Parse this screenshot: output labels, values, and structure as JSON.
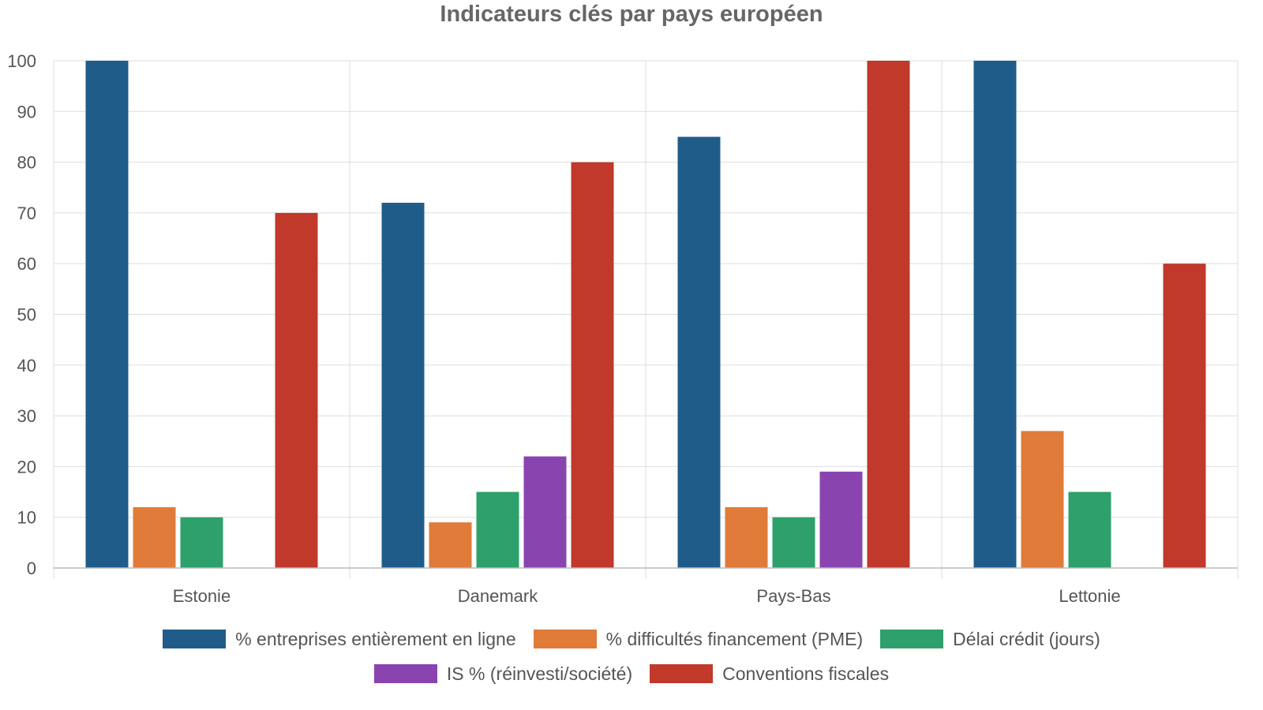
{
  "chart_data": {
    "type": "bar",
    "title": "Indicateurs clés par pays européen",
    "xlabel": "",
    "ylabel": "",
    "categories": [
      "Estonie",
      "Danemark",
      "Pays-Bas",
      "Lettonie"
    ],
    "ylim": [
      0,
      100
    ],
    "yticks": [
      0,
      10,
      20,
      30,
      40,
      50,
      60,
      70,
      80,
      90,
      100
    ],
    "grid": true,
    "legend_position": "bottom",
    "series": [
      {
        "name": "% entreprises entièrement en ligne",
        "color": "#1f5c89",
        "values": [
          100,
          72,
          85,
          100
        ]
      },
      {
        "name": "% difficultés financement (PME)",
        "color": "#e07b3a",
        "values": [
          12,
          9,
          12,
          27
        ]
      },
      {
        "name": "Délai crédit (jours)",
        "color": "#2ea06b",
        "values": [
          10,
          15,
          10,
          15
        ]
      },
      {
        "name": "IS % (réinvesti/société)",
        "color": "#8a44b0",
        "values": [
          null,
          22,
          19,
          null
        ]
      },
      {
        "name": "Conventions fiscales",
        "color": "#c0392b",
        "values": [
          70,
          80,
          100,
          60
        ]
      }
    ]
  }
}
